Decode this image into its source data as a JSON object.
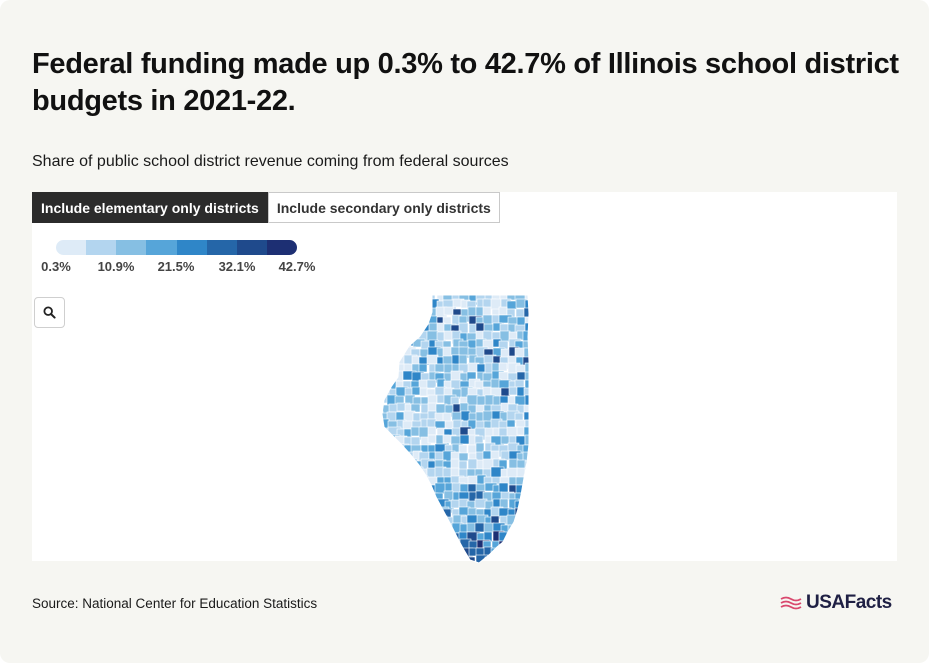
{
  "header": {
    "title": "Federal funding made up 0.3% to 42.7% of Illinois school district budgets in 2021-22.",
    "subtitle": "Share of public school district revenue coming from federal sources"
  },
  "tabs": [
    {
      "label": "Include elementary only districts",
      "active": true
    },
    {
      "label": "Include secondary only districts",
      "active": false
    }
  ],
  "legend": {
    "labels": [
      "0.3%",
      "10.9%",
      "21.5%",
      "32.1%",
      "42.7%"
    ],
    "colors": [
      "#deebf7",
      "#b3d5ef",
      "#86bfe3",
      "#56a5d9",
      "#2f86c8",
      "#2566a8",
      "#1f4a8c",
      "#1d2f73"
    ]
  },
  "map": {
    "region": "Illinois",
    "unit_level": "school district"
  },
  "footer": {
    "source": "Source: National Center for Education Statistics",
    "brand": "USAFacts"
  },
  "colors": {
    "background": "#f6f6f2",
    "panel": "#ffffff",
    "active_tab": "#2b2b2b",
    "brand_accent": "#d9486e",
    "brand_text": "#1f2044"
  },
  "icons": {
    "search": "search-icon",
    "logo": "usafacts-flag-icon"
  }
}
